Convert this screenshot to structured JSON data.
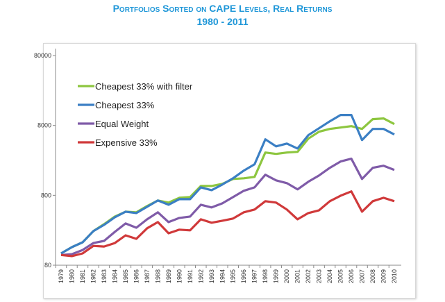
{
  "chart_data": {
    "type": "line",
    "title": "Portfolios Sorted on CAPE Levels, Real Returns",
    "subtitle": "1980 - 2011",
    "xlabel": "",
    "ylabel": "",
    "yscale": "log",
    "ylim": [
      80,
      80000
    ],
    "yticks": [
      "80",
      "800",
      "8000",
      "80000"
    ],
    "grid": false,
    "legend": "top-left",
    "x": [
      "1979",
      "1980",
      "1981",
      "1982",
      "1983",
      "1984",
      "1985",
      "1986",
      "1987",
      "1988",
      "1989",
      "1990",
      "1991",
      "1992",
      "1993",
      "1994",
      "1995",
      "1996",
      "1997",
      "1998",
      "1999",
      "2000",
      "2001",
      "2002",
      "2003",
      "2004",
      "2005",
      "2006",
      "2007",
      "2008",
      "2009",
      "2010"
    ],
    "series": [
      {
        "name": "Cheapest 33% with filter",
        "color": "#8dc63f",
        "values": [
          118,
          145,
          170,
          246,
          309,
          398,
          467,
          457,
          561,
          674,
          630,
          738,
          755,
          1089,
          1089,
          1168,
          1371,
          1403,
          1469,
          3273,
          3127,
          3273,
          3350,
          5177,
          6505,
          7130,
          7466,
          7817,
          7130,
          9840,
          10070,
          8377
        ]
      },
      {
        "name": "Cheapest 33%",
        "color": "#3b7fc4",
        "values": [
          118,
          145,
          170,
          246,
          302,
          389,
          467,
          446,
          548,
          674,
          587,
          705,
          705,
          1040,
          948,
          1141,
          1403,
          1806,
          2224,
          5058,
          4019,
          4400,
          3740,
          5800,
          7300,
          9180,
          11300,
          11300,
          4945,
          7130,
          7130,
          5940
        ]
      },
      {
        "name": "Equal Weight",
        "color": "#7f5ba8",
        "values": [
          112,
          115,
          132,
          166,
          178,
          240,
          316,
          275,
          363,
          457,
          331,
          380,
          398,
          587,
          536,
          614,
          755,
          928,
          1040,
          1575,
          1310,
          1195,
          972,
          1250,
          1540,
          1980,
          2440,
          2670,
          1370,
          1980,
          2120,
          1850
        ]
      },
      {
        "name": "Expensive 33%",
        "color": "#d0393a",
        "values": [
          112,
          108,
          118,
          151,
          148,
          166,
          214,
          191,
          270,
          331,
          229,
          258,
          252,
          363,
          324,
          347,
          372,
          457,
          501,
          659,
          630,
          501,
          363,
          446,
          489,
          659,
          790,
          910,
          467,
          659,
          738,
          659
        ]
      }
    ]
  }
}
